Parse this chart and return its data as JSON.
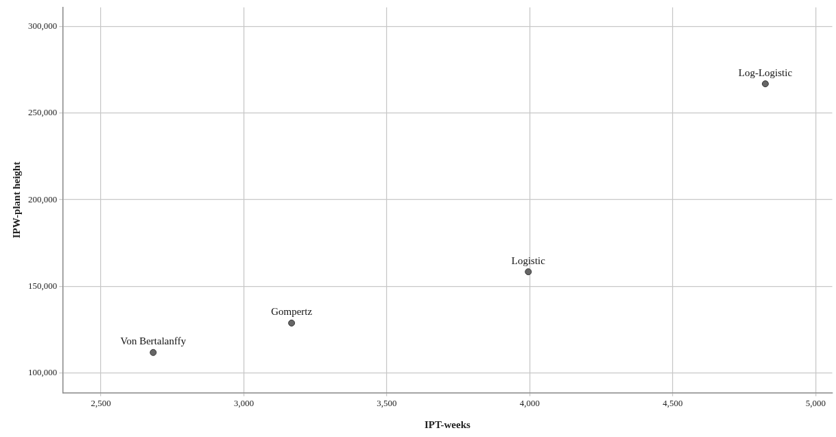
{
  "chart_data": {
    "type": "scatter",
    "xlabel": "IPT-weeks",
    "ylabel": "IPW-plant height",
    "x": [
      2683,
      3167,
      3995,
      4824
    ],
    "values": [
      111800,
      128800,
      158400,
      266900
    ],
    "color": "#666666",
    "marker": "circle",
    "xlim": [
      2366,
      5058
    ],
    "xticks": [
      {
        "value": 2500,
        "label": "2,500"
      },
      {
        "value": 3000,
        "label": "3,000"
      },
      {
        "value": 3500,
        "label": "3,500"
      },
      {
        "value": 4000,
        "label": "4,000"
      },
      {
        "value": 4500,
        "label": "4,500"
      },
      {
        "value": 5000,
        "label": "5,000"
      }
    ],
    "ylim": [
      88600,
      311000
    ],
    "yticks": [
      {
        "value": 100000,
        "label": "100,000"
      },
      {
        "value": 150000,
        "label": "150,000"
      },
      {
        "value": 200000,
        "label": "200,000"
      },
      {
        "value": 250000,
        "label": "250,000"
      },
      {
        "value": 300000,
        "label": "300,000"
      }
    ],
    "grid": true,
    "annotations": [
      {
        "text": "Von Bertalanffy",
        "x": 2683,
        "y": 111800
      },
      {
        "text": "Gompertz",
        "x": 3167,
        "y": 128800
      },
      {
        "text": "Logistic",
        "x": 3995,
        "y": 158400
      },
      {
        "text": "Log-Logistic",
        "x": 4824,
        "y": 266900
      }
    ]
  }
}
